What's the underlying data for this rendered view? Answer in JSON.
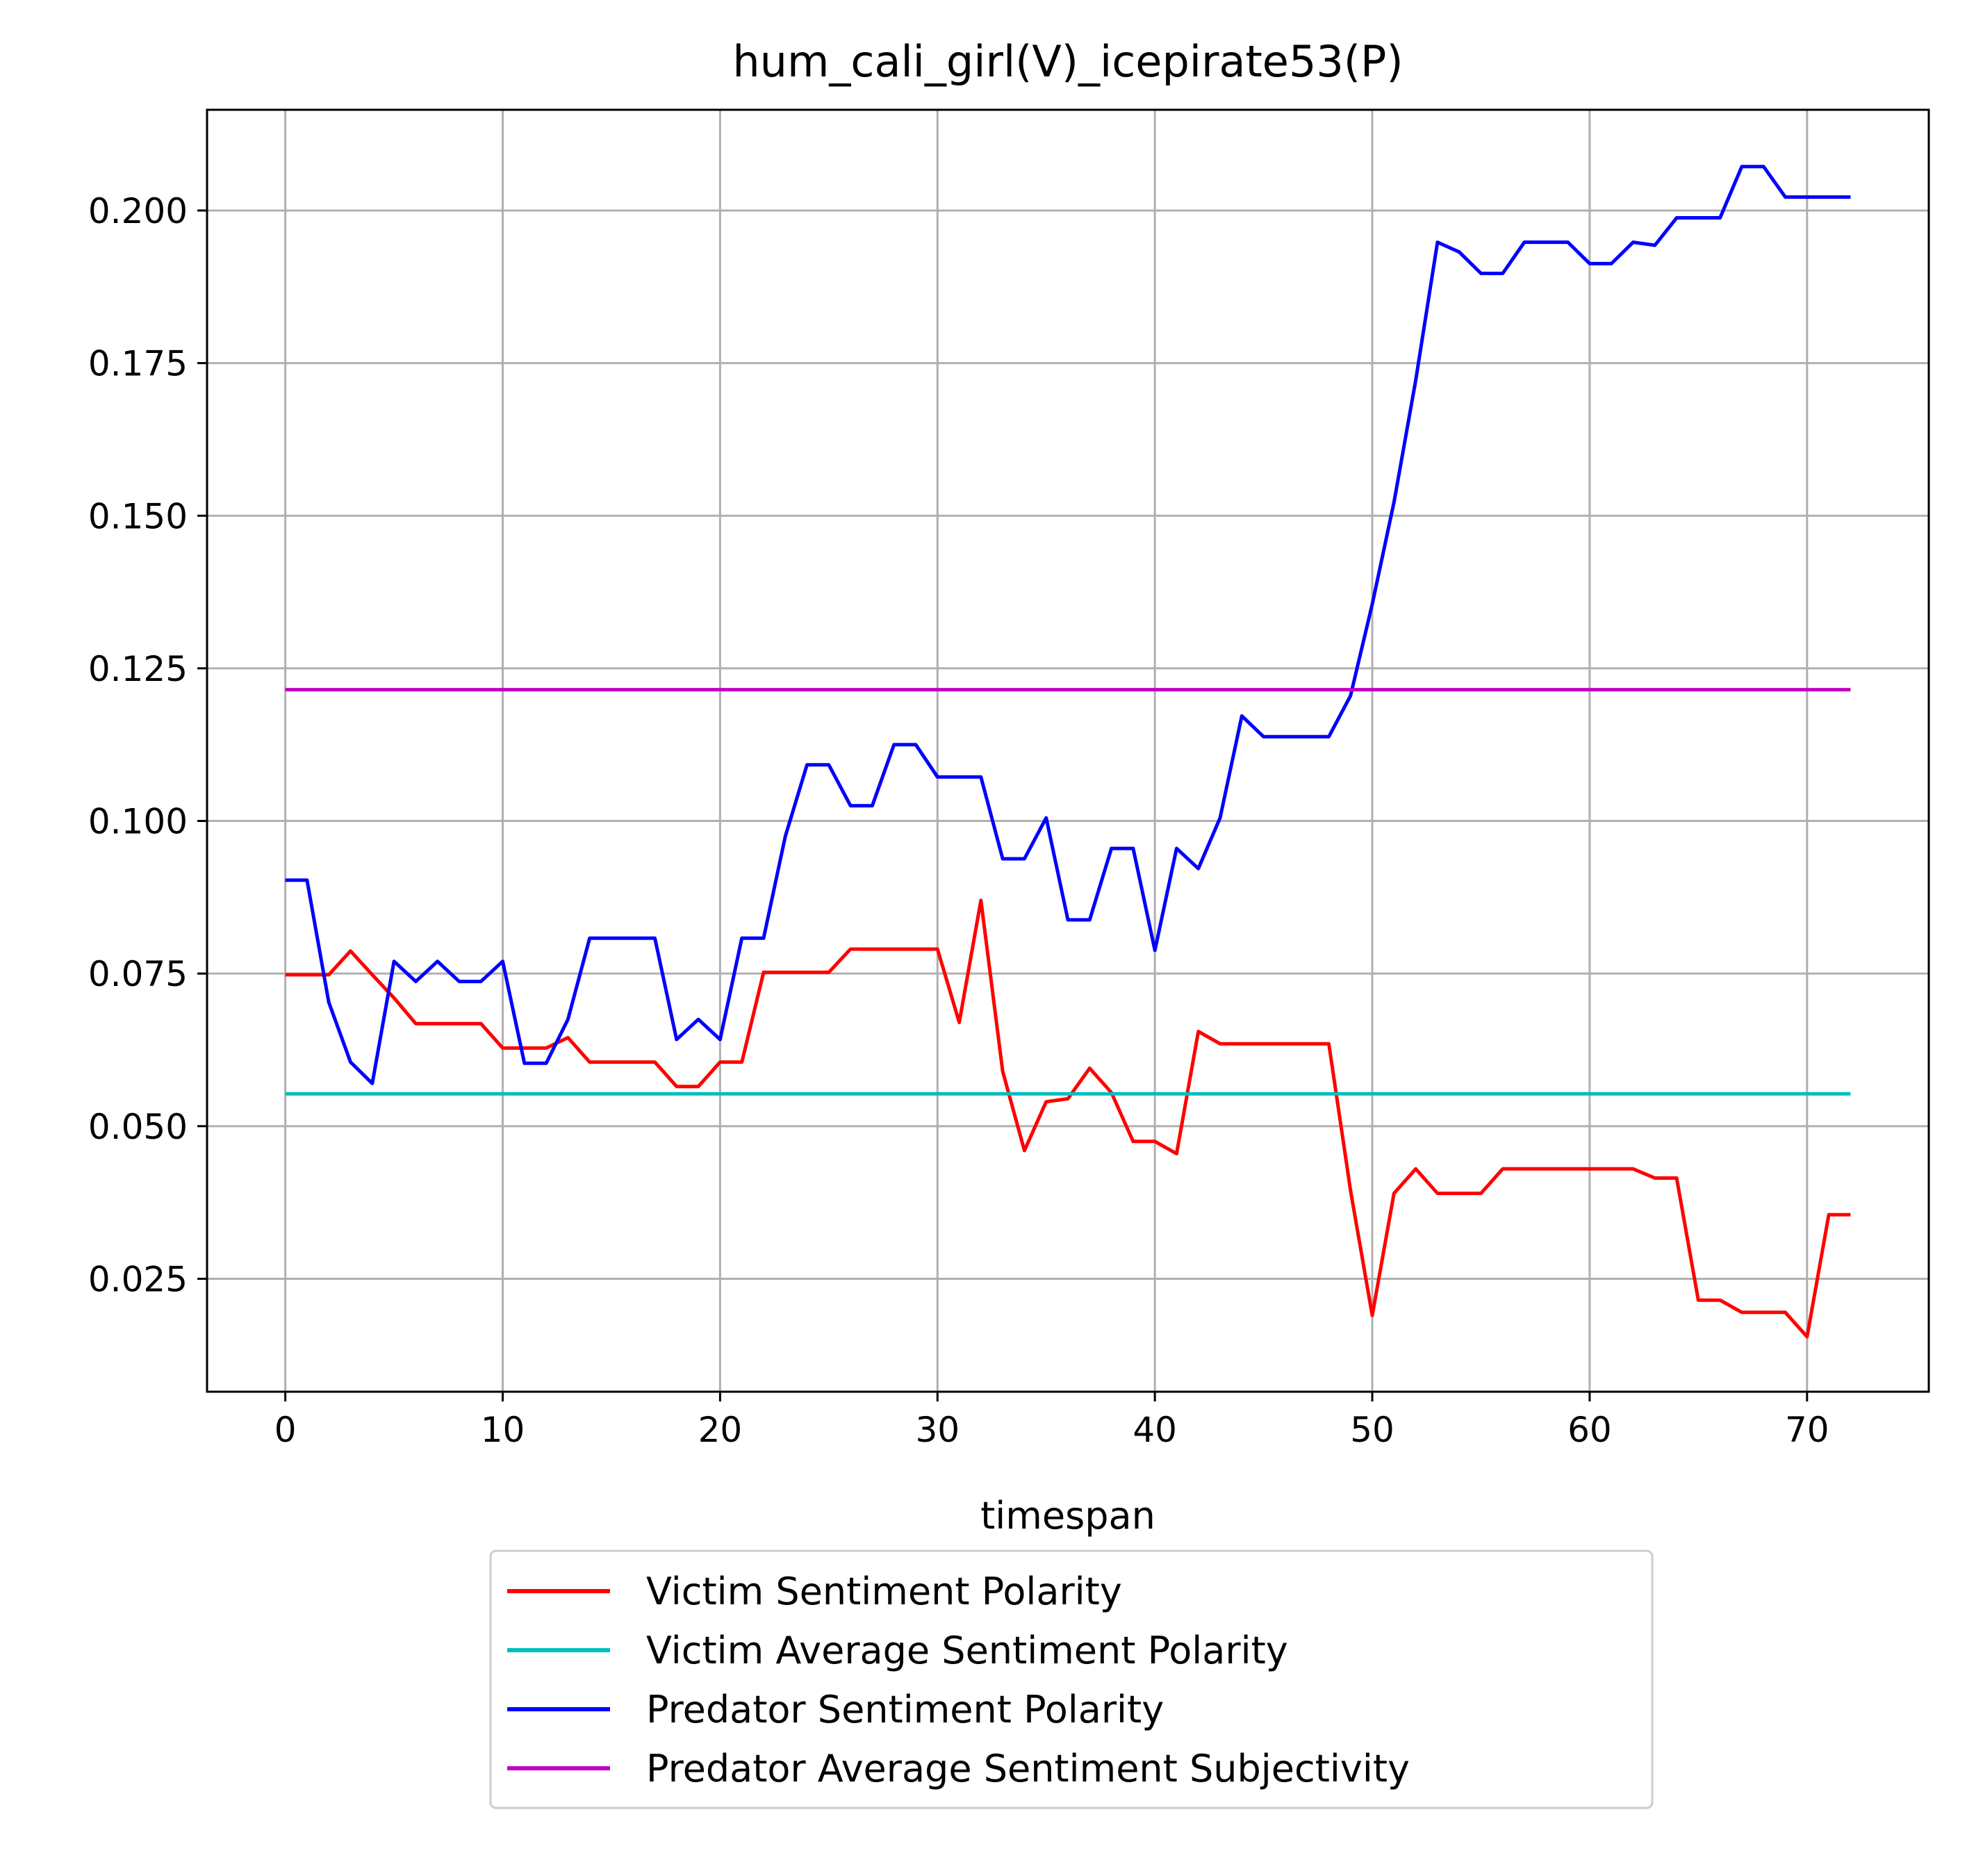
{
  "chart_data": {
    "type": "line",
    "title": "hum_cali_girl(V)_icepirate53(P)",
    "xlabel": "timespan",
    "ylabel": "",
    "xlim": [
      -3.6,
      75.6
    ],
    "ylim": [
      0.0065,
      0.2165
    ],
    "xticks": [
      0,
      10,
      20,
      30,
      40,
      50,
      60,
      70
    ],
    "xtick_labels": [
      "0",
      "10",
      "20",
      "30",
      "40",
      "50",
      "60",
      "70"
    ],
    "yticks": [
      0.025,
      0.05,
      0.075,
      0.1,
      0.125,
      0.15,
      0.175,
      0.2
    ],
    "ytick_labels": [
      "0.025",
      "0.050",
      "0.075",
      "0.100",
      "0.125",
      "0.150",
      "0.175",
      "0.200"
    ],
    "grid": true,
    "legend_position": "below",
    "x": [
      0,
      1,
      2,
      3,
      4,
      5,
      6,
      7,
      8,
      9,
      10,
      11,
      12,
      13,
      14,
      15,
      16,
      17,
      18,
      19,
      20,
      21,
      22,
      23,
      24,
      25,
      26,
      27,
      28,
      29,
      30,
      31,
      32,
      33,
      34,
      35,
      36,
      37,
      38,
      39,
      40,
      41,
      42,
      43,
      44,
      45,
      46,
      47,
      48,
      49,
      50,
      51,
      52,
      53,
      54,
      55,
      56,
      57,
      58,
      59,
      60,
      61,
      62,
      63,
      64,
      65,
      66,
      67,
      68,
      69,
      70,
      71,
      72
    ],
    "series": [
      {
        "name": "Victim Sentiment Polarity",
        "color": "#ff0000",
        "values": [
          0.0748,
          0.0748,
          0.0748,
          0.0787,
          0.0748,
          0.071,
          0.0668,
          0.0668,
          0.0668,
          0.0668,
          0.0628,
          0.0628,
          0.0628,
          0.0645,
          0.0605,
          0.0605,
          0.0605,
          0.0605,
          0.0565,
          0.0565,
          0.0605,
          0.0605,
          0.0752,
          0.0752,
          0.0752,
          0.0752,
          0.079,
          0.079,
          0.079,
          0.079,
          0.079,
          0.067,
          0.087,
          0.059,
          0.046,
          0.054,
          0.0545,
          0.0595,
          0.0555,
          0.0475,
          0.0475,
          0.0455,
          0.0655,
          0.0635,
          0.0635,
          0.0635,
          0.0635,
          0.0635,
          0.0635,
          0.0395,
          0.019,
          0.039,
          0.043,
          0.039,
          0.039,
          0.039,
          0.043,
          0.043,
          0.043,
          0.043,
          0.043,
          0.043,
          0.043,
          0.0415,
          0.0415,
          0.0215,
          0.0215,
          0.0195,
          0.0195,
          0.0195,
          0.0155,
          0.0355,
          0.0355
        ]
      },
      {
        "name": "Victim Average Sentiment Polarity",
        "color": "#00bfbf",
        "values": [
          0.0553,
          0.0553,
          0.0553,
          0.0553,
          0.0553,
          0.0553,
          0.0553,
          0.0553,
          0.0553,
          0.0553,
          0.0553,
          0.0553,
          0.0553,
          0.0553,
          0.0553,
          0.0553,
          0.0553,
          0.0553,
          0.0553,
          0.0553,
          0.0553,
          0.0553,
          0.0553,
          0.0553,
          0.0553,
          0.0553,
          0.0553,
          0.0553,
          0.0553,
          0.0553,
          0.0553,
          0.0553,
          0.0553,
          0.0553,
          0.0553,
          0.0553,
          0.0553,
          0.0553,
          0.0553,
          0.0553,
          0.0553,
          0.0553,
          0.0553,
          0.0553,
          0.0553,
          0.0553,
          0.0553,
          0.0553,
          0.0553,
          0.0553,
          0.0553,
          0.0553,
          0.0553,
          0.0553,
          0.0553,
          0.0553,
          0.0553,
          0.0553,
          0.0553,
          0.0553,
          0.0553,
          0.0553,
          0.0553,
          0.0553,
          0.0553,
          0.0553,
          0.0553,
          0.0553,
          0.0553,
          0.0553,
          0.0553,
          0.0553,
          0.0553
        ]
      },
      {
        "name": "Predator Sentiment Polarity",
        "color": "#0000ff",
        "values": [
          0.0903,
          0.0903,
          0.0703,
          0.0605,
          0.057,
          0.077,
          0.0737,
          0.077,
          0.0737,
          0.0737,
          0.077,
          0.0603,
          0.0603,
          0.0675,
          0.0808,
          0.0808,
          0.0808,
          0.0808,
          0.0642,
          0.0675,
          0.0642,
          0.0808,
          0.0808,
          0.0975,
          0.1092,
          0.1092,
          0.1025,
          0.1025,
          0.1125,
          0.1125,
          0.1072,
          0.1072,
          0.1072,
          0.0938,
          0.0938,
          0.1005,
          0.0838,
          0.0838,
          0.0955,
          0.0955,
          0.0788,
          0.0955,
          0.0922,
          0.1005,
          0.1172,
          0.1138,
          0.1138,
          0.1138,
          0.1138,
          0.1205,
          0.1355,
          0.1522,
          0.1722,
          0.1948,
          0.1932,
          0.1897,
          0.1897,
          0.1948,
          0.1948,
          0.1948,
          0.1913,
          0.1913,
          0.1948,
          0.1943,
          0.1988,
          0.1988,
          0.1988,
          0.2072,
          0.2072,
          0.2022,
          0.2022,
          0.2022,
          0.2022
        ]
      },
      {
        "name": "Predator Average Sentiment Subjectivity",
        "color": "#bf00bf",
        "values": [
          0.1215,
          0.1215,
          0.1215,
          0.1215,
          0.1215,
          0.1215,
          0.1215,
          0.1215,
          0.1215,
          0.1215,
          0.1215,
          0.1215,
          0.1215,
          0.1215,
          0.1215,
          0.1215,
          0.1215,
          0.1215,
          0.1215,
          0.1215,
          0.1215,
          0.1215,
          0.1215,
          0.1215,
          0.1215,
          0.1215,
          0.1215,
          0.1215,
          0.1215,
          0.1215,
          0.1215,
          0.1215,
          0.1215,
          0.1215,
          0.1215,
          0.1215,
          0.1215,
          0.1215,
          0.1215,
          0.1215,
          0.1215,
          0.1215,
          0.1215,
          0.1215,
          0.1215,
          0.1215,
          0.1215,
          0.1215,
          0.1215,
          0.1215,
          0.1215,
          0.1215,
          0.1215,
          0.1215,
          0.1215,
          0.1215,
          0.1215,
          0.1215,
          0.1215,
          0.1215,
          0.1215,
          0.1215,
          0.1215,
          0.1215,
          0.1215,
          0.1215,
          0.1215,
          0.1215,
          0.1215,
          0.1215,
          0.1215,
          0.1215,
          0.1215
        ]
      }
    ]
  }
}
